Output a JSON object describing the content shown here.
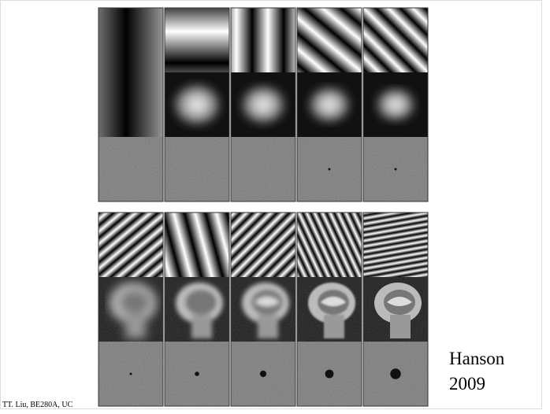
{
  "caption": {
    "author": "Hanson",
    "year": "2009"
  },
  "footer": "TT. Liu, BE280A, UC"
}
